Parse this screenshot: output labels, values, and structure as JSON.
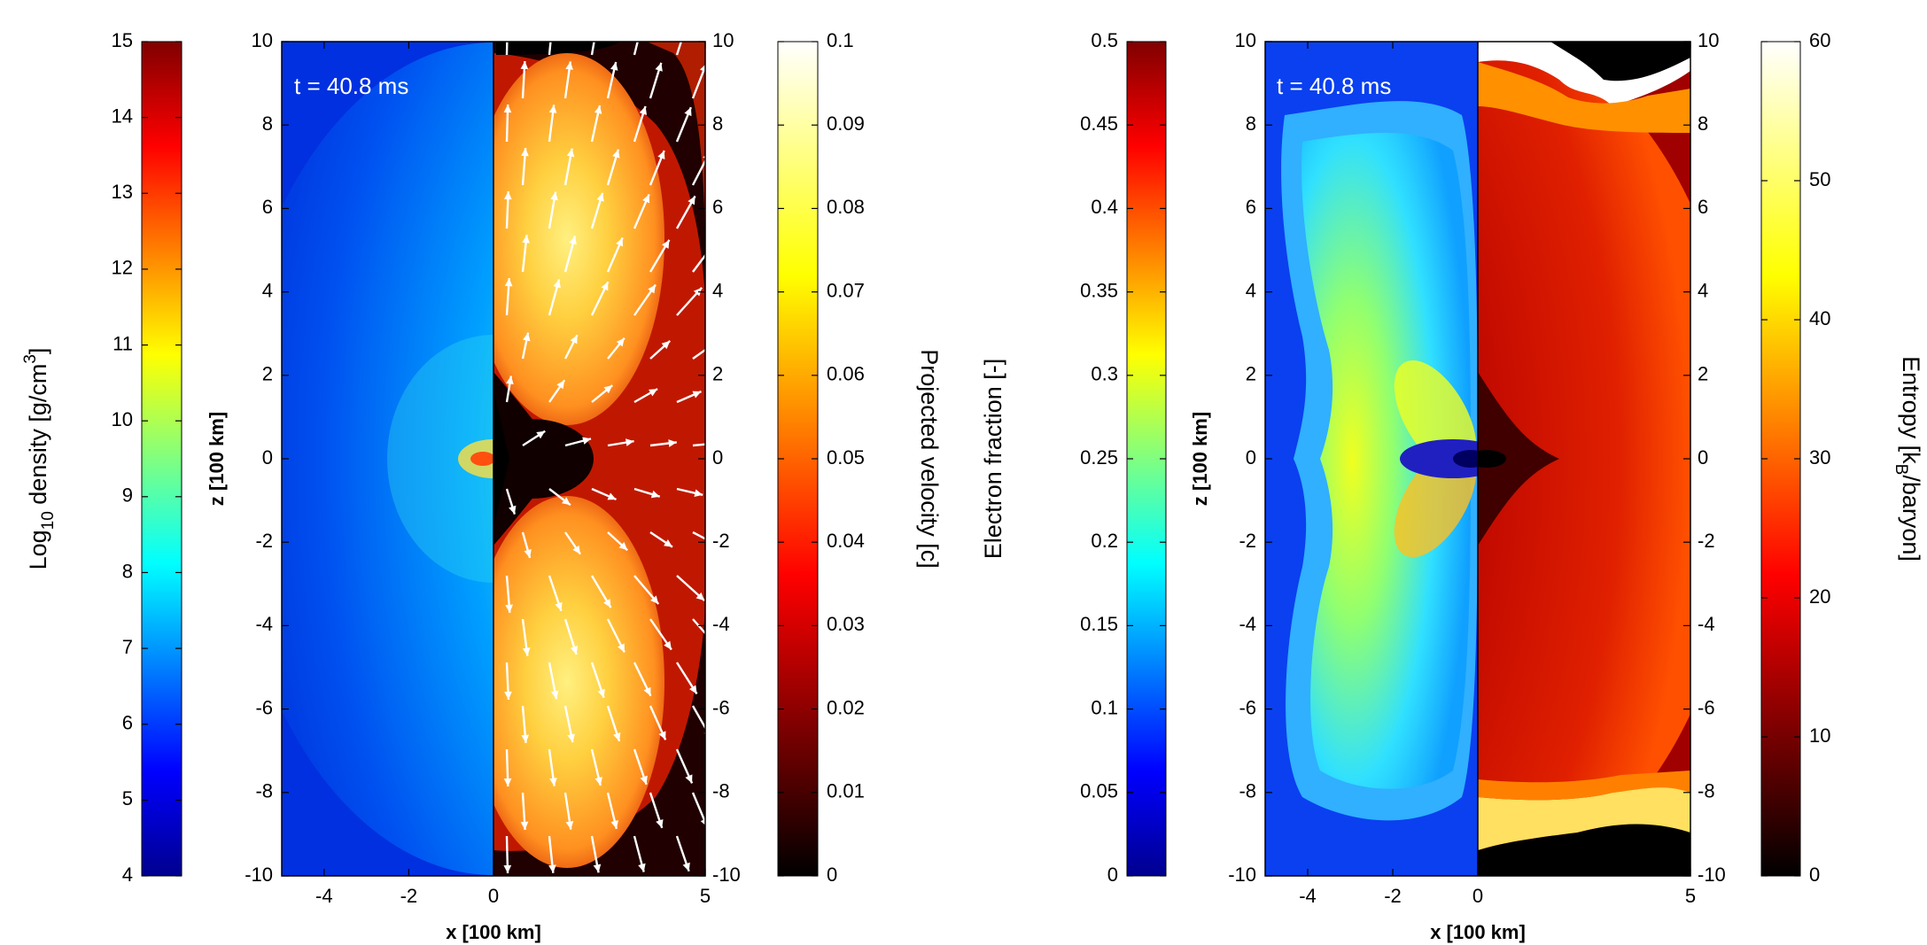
{
  "chart_data": [
    {
      "type": "heatmap",
      "panel": "left",
      "time_label": "t = 40.8 ms",
      "xlabel": "x [100 km]",
      "ylabel": "z [100 km]",
      "xlim": [
        -5,
        5
      ],
      "ylim": [
        -10,
        10
      ],
      "x_ticks": [
        "-4",
        "-2",
        "0",
        "5"
      ],
      "y_ticks_left": [
        "10",
        "8",
        "6",
        "4",
        "2",
        "0",
        "-2",
        "-4",
        "-6",
        "-8",
        "-10"
      ],
      "y_ticks_right": [
        "10",
        "8",
        "6",
        "4",
        "2",
        "0",
        "-2",
        "-4",
        "-6",
        "-8",
        "-10"
      ],
      "left_half": {
        "quantity": "density",
        "colorbar": {
          "label_main": "Log",
          "label_sub": "10",
          "label_rest": " density [g/cm",
          "label_sup": "3",
          "label_end": "]",
          "range": [
            4,
            15
          ],
          "ticks": [
            "4",
            "5",
            "6",
            "7",
            "8",
            "9",
            "10",
            "11",
            "12",
            "13",
            "14",
            "15"
          ],
          "colormap": "jet"
        }
      },
      "right_half": {
        "quantity": "projected velocity",
        "overlay": "velocity arrows",
        "colorbar": {
          "label": "Projected velocity [c]",
          "range": [
            0,
            0.1
          ],
          "ticks": [
            "0",
            "0.01",
            "0.02",
            "0.03",
            "0.04",
            "0.05",
            "0.06",
            "0.07",
            "0.08",
            "0.09",
            "0.1"
          ],
          "colormap": "hot"
        }
      }
    },
    {
      "type": "heatmap",
      "panel": "right",
      "time_label": "t = 40.8 ms",
      "xlabel": "x [100 km]",
      "ylabel": "z [100 km]",
      "xlim": [
        -5,
        5
      ],
      "ylim": [
        -10,
        10
      ],
      "x_ticks": [
        "-4",
        "-2",
        "0",
        "5"
      ],
      "y_ticks_left": [
        "10",
        "8",
        "6",
        "4",
        "2",
        "0",
        "-2",
        "-4",
        "-6",
        "-8",
        "-10"
      ],
      "y_ticks_right": [
        "10",
        "8",
        "6",
        "4",
        "2",
        "0",
        "-2",
        "-4",
        "-6",
        "-8",
        "-10"
      ],
      "left_half": {
        "quantity": "electron fraction",
        "colorbar": {
          "label": "Electron fraction [-]",
          "range": [
            0,
            0.5
          ],
          "ticks": [
            "0",
            "0.05",
            "0.1",
            "0.15",
            "0.2",
            "0.25",
            "0.3",
            "0.35",
            "0.4",
            "0.45",
            "0.5"
          ],
          "colormap": "jet"
        }
      },
      "right_half": {
        "quantity": "entropy",
        "colorbar": {
          "label_main": "Entropy [k",
          "label_sub": "B",
          "label_end": "/baryon]",
          "range": [
            0,
            60
          ],
          "ticks": [
            "0",
            "10",
            "20",
            "30",
            "40",
            "50",
            "60"
          ],
          "colormap": "hot"
        }
      }
    }
  ],
  "colors": {
    "jet": [
      "#00008f",
      "#0000ff",
      "#0080ff",
      "#00ffff",
      "#80ff80",
      "#ffff00",
      "#ff8000",
      "#ff0000",
      "#800000"
    ],
    "hot": [
      "#000000",
      "#800000",
      "#ff0000",
      "#ff8000",
      "#ffff00",
      "#ffffff"
    ],
    "arrow": "#ffffff",
    "axis": "#000000"
  }
}
